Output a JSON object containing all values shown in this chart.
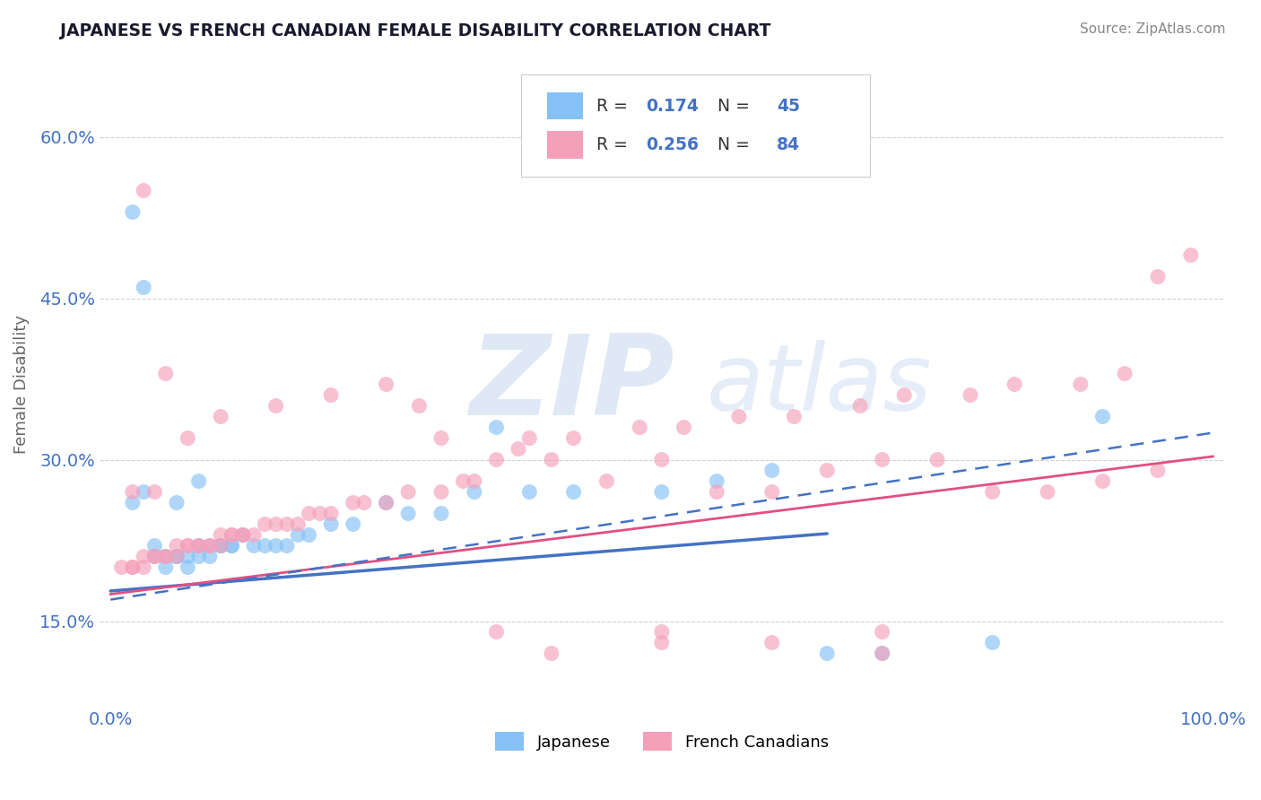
{
  "title": "JAPANESE VS FRENCH CANADIAN FEMALE DISABILITY CORRELATION CHART",
  "source": "Source: ZipAtlas.com",
  "ylabel": "Female Disability",
  "y_tick_values": [
    0.15,
    0.3,
    0.45,
    0.6
  ],
  "x_lim": [
    -0.01,
    1.01
  ],
  "y_lim": [
    0.07,
    0.67
  ],
  "legend_label1": "Japanese",
  "legend_label2": "French Canadians",
  "R1": 0.174,
  "N1": 45,
  "R2": 0.256,
  "N2": 84,
  "color_japanese": "#85c1f5",
  "color_french": "#f5a0ba",
  "color_japanese_line": "#4472c4",
  "color_french_line": "#e05080",
  "background_color": "#ffffff",
  "japanese_x": [
    0.02,
    0.03,
    0.04,
    0.04,
    0.05,
    0.05,
    0.06,
    0.06,
    0.07,
    0.07,
    0.08,
    0.08,
    0.09,
    0.09,
    0.1,
    0.1,
    0.11,
    0.11,
    0.12,
    0.13,
    0.14,
    0.15,
    0.16,
    0.17,
    0.18,
    0.2,
    0.22,
    0.25,
    0.27,
    0.3,
    0.33,
    0.38,
    0.42,
    0.5,
    0.55,
    0.6,
    0.65,
    0.7,
    0.8,
    0.9,
    0.02,
    0.03,
    0.06,
    0.08,
    0.35
  ],
  "japanese_y": [
    0.53,
    0.46,
    0.22,
    0.21,
    0.21,
    0.2,
    0.21,
    0.21,
    0.21,
    0.2,
    0.21,
    0.22,
    0.22,
    0.21,
    0.22,
    0.22,
    0.22,
    0.22,
    0.23,
    0.22,
    0.22,
    0.22,
    0.22,
    0.23,
    0.23,
    0.24,
    0.24,
    0.26,
    0.25,
    0.25,
    0.27,
    0.27,
    0.27,
    0.27,
    0.28,
    0.29,
    0.12,
    0.12,
    0.13,
    0.34,
    0.26,
    0.27,
    0.26,
    0.28,
    0.33
  ],
  "french_x": [
    0.01,
    0.02,
    0.02,
    0.03,
    0.03,
    0.04,
    0.04,
    0.05,
    0.05,
    0.06,
    0.06,
    0.07,
    0.07,
    0.08,
    0.08,
    0.09,
    0.09,
    0.1,
    0.1,
    0.11,
    0.11,
    0.12,
    0.12,
    0.13,
    0.14,
    0.15,
    0.16,
    0.17,
    0.18,
    0.19,
    0.2,
    0.22,
    0.23,
    0.25,
    0.27,
    0.28,
    0.3,
    0.32,
    0.33,
    0.35,
    0.37,
    0.38,
    0.4,
    0.42,
    0.45,
    0.48,
    0.5,
    0.52,
    0.55,
    0.57,
    0.6,
    0.62,
    0.65,
    0.68,
    0.7,
    0.72,
    0.75,
    0.78,
    0.8,
    0.82,
    0.85,
    0.88,
    0.9,
    0.92,
    0.95,
    0.98,
    0.03,
    0.05,
    0.07,
    0.1,
    0.15,
    0.2,
    0.25,
    0.3,
    0.4,
    0.5,
    0.6,
    0.7,
    0.02,
    0.04,
    0.35,
    0.5,
    0.7,
    0.95
  ],
  "french_y": [
    0.2,
    0.2,
    0.2,
    0.2,
    0.21,
    0.21,
    0.21,
    0.21,
    0.21,
    0.22,
    0.21,
    0.22,
    0.22,
    0.22,
    0.22,
    0.22,
    0.22,
    0.23,
    0.22,
    0.23,
    0.23,
    0.23,
    0.23,
    0.23,
    0.24,
    0.24,
    0.24,
    0.24,
    0.25,
    0.25,
    0.25,
    0.26,
    0.26,
    0.26,
    0.27,
    0.35,
    0.27,
    0.28,
    0.28,
    0.3,
    0.31,
    0.32,
    0.3,
    0.32,
    0.28,
    0.33,
    0.3,
    0.33,
    0.27,
    0.34,
    0.27,
    0.34,
    0.29,
    0.35,
    0.3,
    0.36,
    0.3,
    0.36,
    0.27,
    0.37,
    0.27,
    0.37,
    0.28,
    0.38,
    0.29,
    0.49,
    0.55,
    0.38,
    0.32,
    0.34,
    0.35,
    0.36,
    0.37,
    0.32,
    0.12,
    0.13,
    0.13,
    0.12,
    0.27,
    0.27,
    0.14,
    0.14,
    0.14,
    0.47
  ]
}
